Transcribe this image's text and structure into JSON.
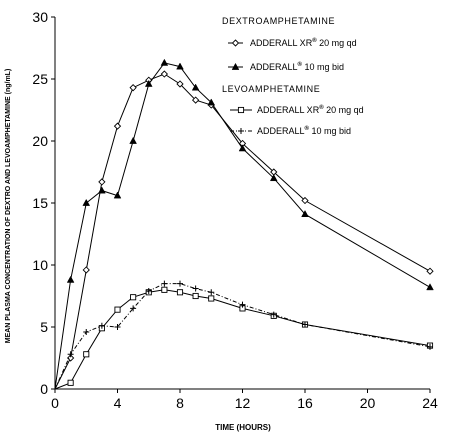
{
  "chart_data": {
    "type": "line",
    "title": "",
    "xlabel": "TIME (HOURS)",
    "ylabel": "MEAN PLASMA CONCENTRATION OF DEXTRO AND LEVOAMPHETAMINE (ng/mL)",
    "xlim": [
      0,
      24
    ],
    "ylim": [
      0,
      30
    ],
    "x_ticks": [
      "0",
      "4",
      "8",
      "12",
      "16",
      "20",
      "24"
    ],
    "y_ticks": [
      "0",
      "5",
      "10",
      "15",
      "20",
      "25",
      "30"
    ],
    "grid": false,
    "legend_position": "top-right",
    "legend_groups": [
      {
        "title": "DEXTROAMPHETAMINE",
        "entries": [
          {
            "name": "ADDERALL XR",
            "sup": "®",
            "suffix": " 20 mg qd"
          },
          {
            "name": "ADDERALL",
            "sup": "®",
            "suffix": " 10 mg bid"
          }
        ]
      },
      {
        "title": "LEVOAMPHETAMINE",
        "entries": [
          {
            "name": "ADDERALL XR",
            "sup": "®",
            "suffix": " 20 mg qd"
          },
          {
            "name": "ADDERALL",
            "sup": "®",
            "suffix": " 10 mg bid"
          }
        ]
      }
    ],
    "series": [
      {
        "name": "ADDERALL XR® 20 mg qd (dextroamphetamine)",
        "marker": "open-diamond",
        "dash": "solid",
        "x": [
          0,
          1,
          2,
          3,
          4,
          5,
          6,
          7,
          8,
          9,
          10,
          12,
          14,
          16,
          24
        ],
        "y": [
          0,
          2.5,
          9.6,
          16.7,
          21.2,
          24.3,
          24.9,
          25.4,
          24.6,
          23.3,
          22.9,
          19.8,
          17.5,
          15.2,
          9.5
        ]
      },
      {
        "name": "ADDERALL® 10 mg bid (dextroamphetamine)",
        "marker": "filled-triangle",
        "dash": "solid",
        "x": [
          0,
          1,
          2,
          3,
          4,
          5,
          6,
          7,
          8,
          9,
          10,
          12,
          14,
          16,
          24
        ],
        "y": [
          0,
          8.8,
          15.0,
          16.0,
          15.6,
          20.0,
          24.6,
          26.3,
          26.0,
          24.3,
          23.1,
          19.4,
          17.0,
          14.1,
          8.2
        ]
      },
      {
        "name": "ADDERALL XR® 20 mg qd (levoamphetamine)",
        "marker": "open-square",
        "dash": "solid",
        "x": [
          0,
          1,
          2,
          3,
          4,
          5,
          6,
          7,
          8,
          9,
          10,
          12,
          14,
          16,
          24
        ],
        "y": [
          0,
          0.5,
          2.8,
          4.9,
          6.4,
          7.4,
          7.8,
          8.0,
          7.8,
          7.5,
          7.3,
          6.5,
          5.9,
          5.2,
          3.5
        ]
      },
      {
        "name": "ADDERALL® 10 mg bid (levoamphetamine)",
        "marker": "plus",
        "dash": "dashed",
        "x": [
          0,
          1,
          2,
          3,
          4,
          5,
          6,
          7,
          8,
          9,
          10,
          12,
          14,
          16,
          24
        ],
        "y": [
          0,
          2.8,
          4.6,
          5.1,
          5.0,
          6.5,
          7.9,
          8.5,
          8.5,
          8.1,
          7.8,
          6.8,
          6.0,
          5.2,
          3.4
        ]
      }
    ]
  }
}
